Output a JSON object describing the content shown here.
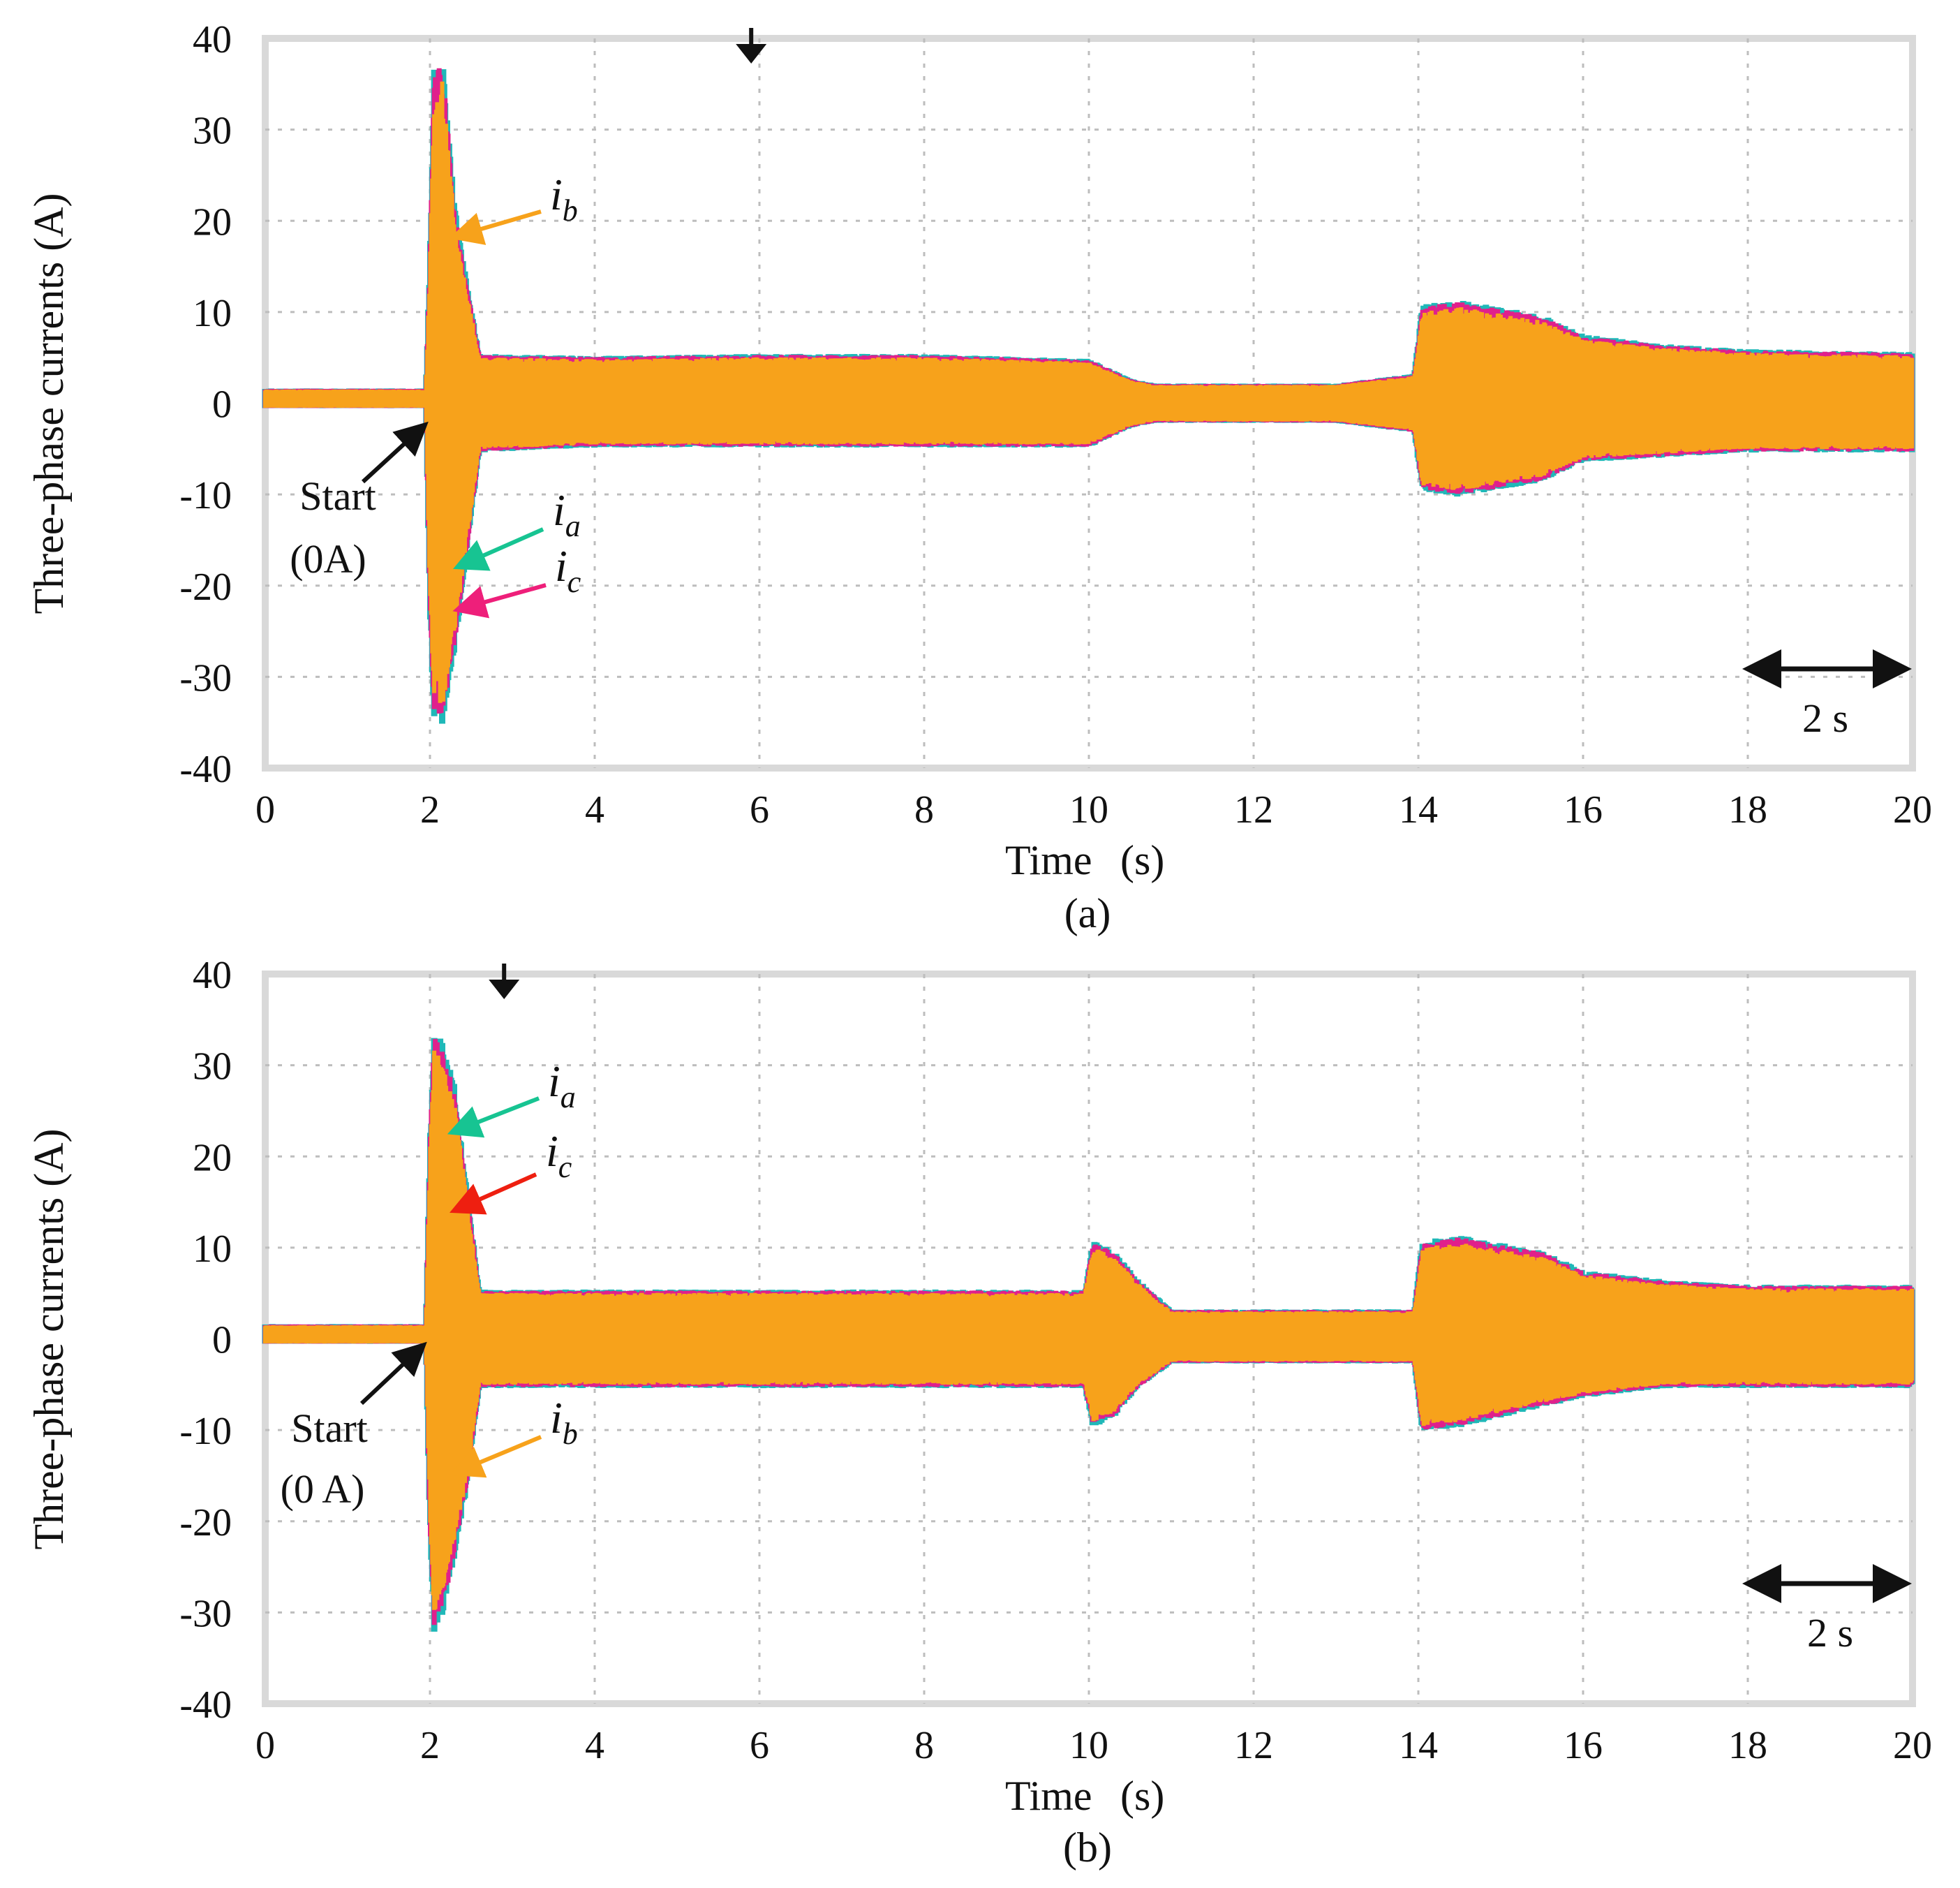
{
  "chart_data": [
    {
      "type": "line",
      "panel_label": "(a)",
      "ylabel": "Three-phase currents  (A)",
      "xlabel_main": "Time",
      "xlabel_unit": "(s)",
      "xlim": [
        0,
        20
      ],
      "ylim": [
        -40,
        40
      ],
      "xticks": [
        0,
        2,
        4,
        6,
        8,
        10,
        12,
        14,
        16,
        18,
        20
      ],
      "yticks": [
        40,
        30,
        20,
        10,
        0,
        -10,
        -20,
        -30,
        -40
      ],
      "tick_labels_x": [
        "0",
        "2",
        "4",
        "6",
        "8",
        "10",
        "12",
        "14",
        "16",
        "18",
        "20"
      ],
      "tick_labels_y": [
        "40",
        "30",
        "20",
        "10",
        "0",
        "-10",
        "-20",
        "-30",
        "-40"
      ],
      "grid": true,
      "trigger_marker_time": 5.9,
      "series": [
        {
          "name": "ia",
          "color": "#1fb8b8"
        },
        {
          "name": "ib",
          "color": "#f7a21b"
        },
        {
          "name": "ic",
          "color": "#e0208c"
        }
      ],
      "envelope": {
        "t": [
          0,
          1.95,
          2.0,
          2.05,
          2.15,
          2.3,
          2.45,
          2.6,
          4,
          6,
          8,
          10,
          10.5,
          10.8,
          11,
          12,
          13,
          13.95,
          14.05,
          14.5,
          15.5,
          16,
          17,
          18,
          20
        ],
        "upper": [
          1.5,
          1.5,
          15,
          34,
          35,
          20,
          12,
          5,
          4.8,
          5,
          5,
          4.5,
          2.5,
          2,
          2,
          2,
          2,
          3,
          10,
          10.5,
          9,
          7,
          6,
          5.5,
          5.2
        ],
        "lower": [
          -0.5,
          -0.5,
          -22,
          -32,
          -33,
          -25,
          -15,
          -5,
          -4.5,
          -4.5,
          -4.5,
          -4.5,
          -2.5,
          -2,
          -2,
          -2,
          -2,
          -3,
          -9,
          -9.5,
          -8,
          -6,
          -5.5,
          -5,
          -5
        ]
      },
      "annotations": {
        "start_line1": "Start",
        "start_line2": "(0A)",
        "ib_base": "i",
        "ib_sub": "b",
        "ia_base": "i",
        "ia_sub": "a",
        "ic_base": "i",
        "ic_sub": "c",
        "scale_label": "2 s"
      },
      "colors": {
        "arrow_black": "#111111",
        "arrow_ib": "#f7a21b",
        "arrow_ia": "#17c492",
        "arrow_ic": "#ee1f7a"
      }
    },
    {
      "type": "line",
      "panel_label": "(b)",
      "ylabel": "Three-phase currents  (A)",
      "xlabel_main": "Time",
      "xlabel_unit": "(s)",
      "xlim": [
        0,
        20
      ],
      "ylim": [
        -40,
        40
      ],
      "xticks": [
        0,
        2,
        4,
        6,
        8,
        10,
        12,
        14,
        16,
        18,
        20
      ],
      "yticks": [
        40,
        30,
        20,
        10,
        0,
        -10,
        -20,
        -30,
        -40
      ],
      "tick_labels_x": [
        "0",
        "2",
        "4",
        "6",
        "8",
        "10",
        "12",
        "14",
        "16",
        "18",
        "20"
      ],
      "tick_labels_y": [
        "40",
        "30",
        "20",
        "10",
        "0",
        "-10",
        "-20",
        "-30",
        "-40"
      ],
      "grid": true,
      "trigger_marker_time": 2.9,
      "series": [
        {
          "name": "ia",
          "color": "#1fb8b8"
        },
        {
          "name": "ib",
          "color": "#f7a21b"
        },
        {
          "name": "ic",
          "color": "#e0208c"
        }
      ],
      "envelope": {
        "t": [
          0,
          1.95,
          2.0,
          2.05,
          2.15,
          2.3,
          2.45,
          2.6,
          4,
          6,
          8,
          9.95,
          10.05,
          10.3,
          10.6,
          11,
          12,
          13,
          13.95,
          14.05,
          14.5,
          15.5,
          16,
          17,
          18,
          20
        ],
        "upper": [
          1.5,
          1.5,
          20,
          32,
          30,
          26,
          15,
          5,
          5,
          5,
          5,
          5,
          10,
          9,
          6,
          3,
          3,
          3,
          3,
          10,
          10.5,
          9,
          7,
          6,
          5.5,
          5.5
        ],
        "lower": [
          -0.5,
          -0.5,
          -20,
          -30,
          -28,
          -22,
          -15,
          -5,
          -5,
          -5,
          -5,
          -5,
          -9,
          -8,
          -5,
          -2.5,
          -2.5,
          -2.5,
          -2.5,
          -9.5,
          -9,
          -7,
          -6,
          -5,
          -5,
          -5
        ]
      },
      "annotations": {
        "start_line1": "Start",
        "start_line2": "(0 A)",
        "ib_base": "i",
        "ib_sub": "b",
        "ia_base": "i",
        "ia_sub": "a",
        "ic_base": "i",
        "ic_sub": "c",
        "scale_label": "2 s"
      },
      "colors": {
        "arrow_black": "#111111",
        "arrow_ib": "#f7a21b",
        "arrow_ia": "#17c492",
        "arrow_ic": "#ee1f10"
      }
    }
  ]
}
